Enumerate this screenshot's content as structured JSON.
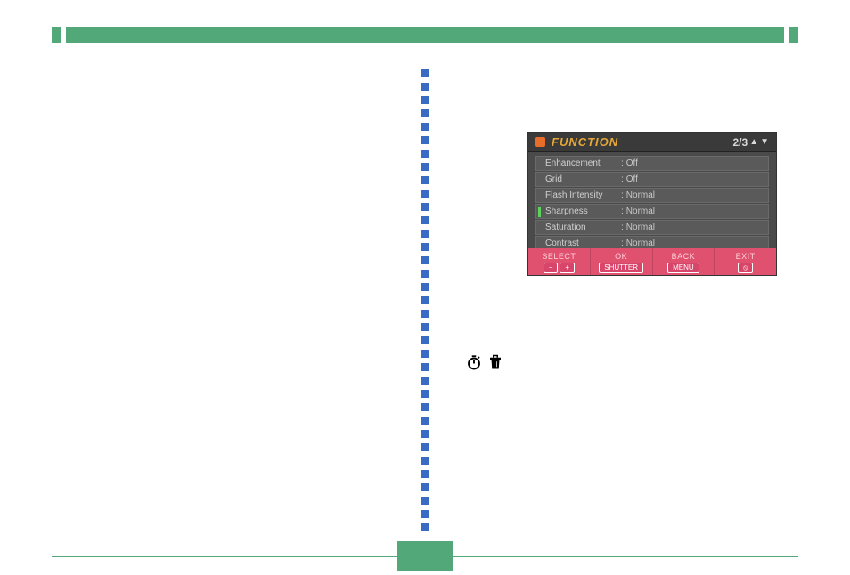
{
  "top_bar_color": "#52a878",
  "divider_color": "#3a6bc4",
  "menu": {
    "title": "FUNCTION",
    "page_indicator": "2/3",
    "title_color": "#e5a838",
    "header_icon_color": "#e86c2a",
    "panel_bg": "#4a4a4a",
    "row_bg": "#5a5a5a",
    "text_color": "#d0d0d0",
    "active_indicator_color": "#5bd45b",
    "rows": [
      {
        "label": "Enhancement",
        "value": "Off",
        "active": false
      },
      {
        "label": "Grid",
        "value": "Off",
        "active": false
      },
      {
        "label": "Flash Intensity",
        "value": "Normal",
        "active": false
      },
      {
        "label": "Sharpness",
        "value": "Normal",
        "active": true
      },
      {
        "label": "Saturation",
        "value": "Normal",
        "active": false
      },
      {
        "label": "Contrast",
        "value": "Normal",
        "active": false
      }
    ],
    "footer": {
      "bg_color": "#e0506f",
      "cols": [
        {
          "label": "SELECT",
          "buttons": [
            "−",
            "+"
          ]
        },
        {
          "label": "OK",
          "buttons": [
            "SHUTTER"
          ]
        },
        {
          "label": "BACK",
          "buttons": [
            "MENU"
          ]
        },
        {
          "label": "EXIT",
          "buttons": [
            "⦸"
          ]
        }
      ]
    }
  },
  "icons": [
    "timer-icon",
    "trash-icon"
  ],
  "bottom_box_color": "#52a878"
}
